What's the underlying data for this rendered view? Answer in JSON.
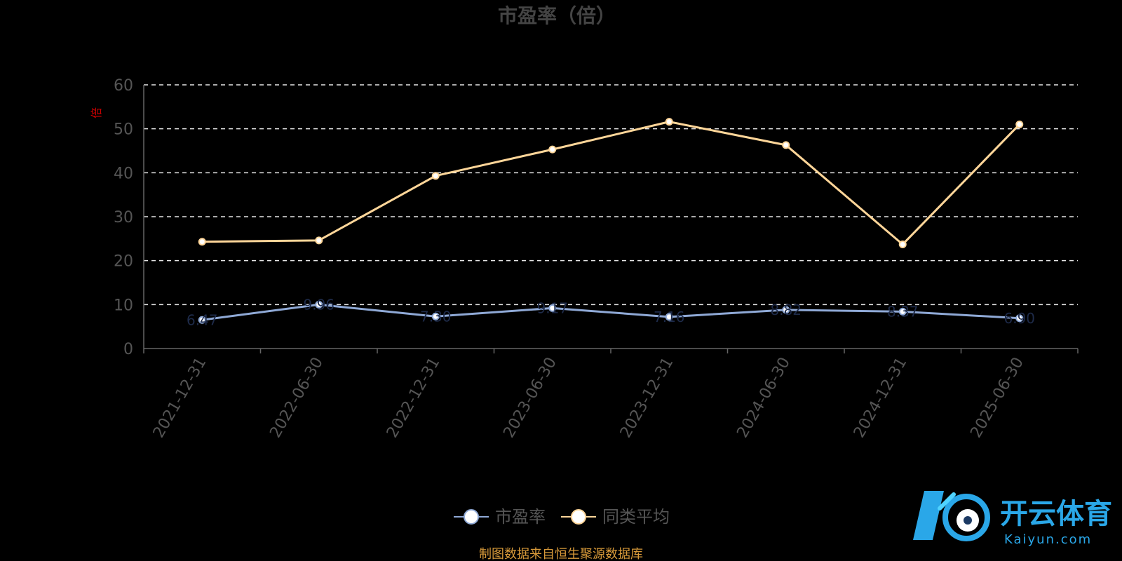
{
  "chart_data": {
    "type": "line",
    "title": "市盈率（倍）",
    "ylabel": "倍",
    "xlabel": "",
    "categories": [
      "2021-12-31",
      "2022-06-30",
      "2022-12-31",
      "2023-06-30",
      "2023-12-31",
      "2024-06-30",
      "2024-12-31",
      "2025-06-30"
    ],
    "ylim": [
      0,
      60
    ],
    "yticks": [
      "0",
      "10",
      "20",
      "30",
      "40",
      "50",
      "60"
    ],
    "grid": true,
    "legend_position": "bottom-center",
    "series": [
      {
        "name": "市盈率",
        "color": "#8fa9d6",
        "values": [
          6.5,
          10.0,
          7.3,
          9.2,
          7.2,
          8.8,
          8.4,
          6.9
        ],
        "labels": [
          "6.47",
          "9.96",
          "7.30",
          "9.17",
          "7.16",
          "8.82",
          "8.37",
          "6.90"
        ]
      },
      {
        "name": "同类平均",
        "color": "#ffd699",
        "values": [
          24.3,
          24.6,
          39.3,
          45.3,
          51.6,
          46.3,
          23.7,
          51.0
        ]
      }
    ],
    "source": "制图数据来自恒生聚源数据库"
  },
  "logo": {
    "cn": "开云体育",
    "en": "Kaiyun.com",
    "color": "#2aa7e8"
  }
}
